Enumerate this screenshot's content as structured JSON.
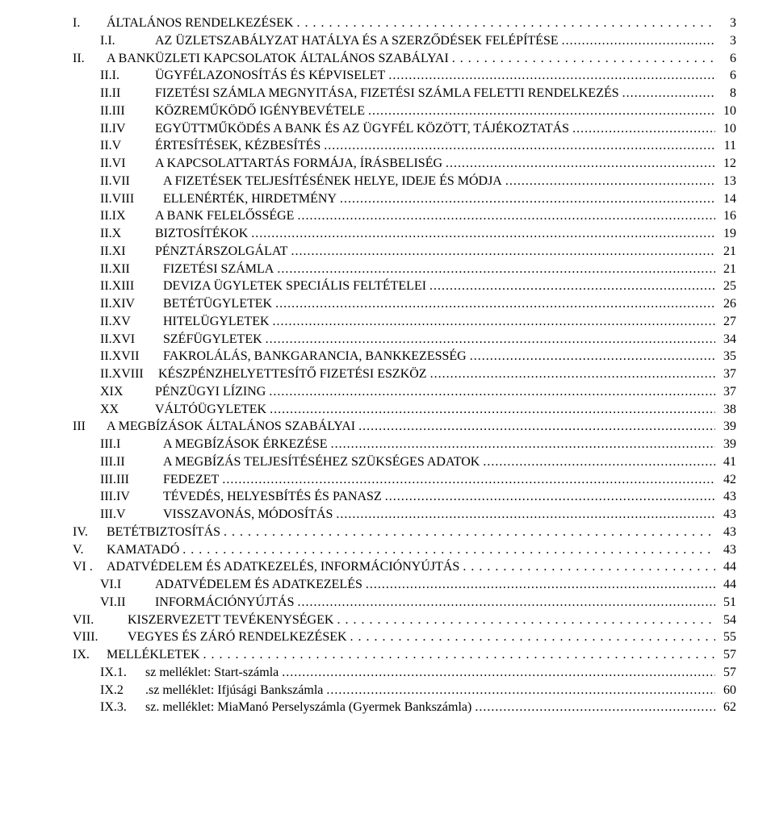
{
  "toc": [
    {
      "indent": 0,
      "numWidth": "w0",
      "num": "I.",
      "label": "ÁLTALÁNOS RENDELKEZÉSEK",
      "page": "3",
      "leader": "wide"
    },
    {
      "indent": 1,
      "numWidth": "w1",
      "num": "I.I.",
      "label": "AZ ÜZLETSZABÁLYZAT HATÁLYA ÉS A SZERZŐDÉSEK FELÉPÍTÉSE",
      "page": "3",
      "leader": "dots"
    },
    {
      "indent": 0,
      "numWidth": "w0",
      "num": "II.",
      "label": "A BANKÜZLETI KAPCSOLATOK ÁLTALÁNOS SZABÁLYAI",
      "page": "6",
      "leader": "wide"
    },
    {
      "indent": 1,
      "numWidth": "w1",
      "num": "II.I.",
      "label": "ÜGYFÉLAZONOSÍTÁS ÉS KÉPVISELET",
      "page": "6",
      "leader": "dots"
    },
    {
      "indent": 1,
      "numWidth": "w1",
      "num": "II.II",
      "label": "FIZETÉSI SZÁMLA MEGNYITÁSA, FIZETÉSI SZÁMLA FELETTI RENDELKEZÉS",
      "page": "8",
      "leader": "dots"
    },
    {
      "indent": 1,
      "numWidth": "w1",
      "num": "II.III",
      "label": "KÖZREMŰKÖDŐ IGÉNYBEVÉTELE",
      "page": "10",
      "leader": "dots"
    },
    {
      "indent": 1,
      "numWidth": "w1",
      "num": "II.IV",
      "label": "EGYÜTTMŰKÖDÉS A BANK ÉS AZ ÜGYFÉL KÖZÖTT, TÁJÉKOZTATÁS",
      "page": "10",
      "leader": "dots"
    },
    {
      "indent": 1,
      "numWidth": "w1",
      "num": "II.V",
      "label": "ÉRTESÍTÉSEK, KÉZBESÍTÉS",
      "page": "11",
      "leader": "dots"
    },
    {
      "indent": 1,
      "numWidth": "w1",
      "num": "II.VI",
      "label": "A KAPCSOLATTARTÁS FORMÁJA, ÍRÁSBELISÉG",
      "page": "12",
      "leader": "dots"
    },
    {
      "indent": 1,
      "numWidth": "w2",
      "num": "II.VII",
      "label": "A FIZETÉSEK TELJESÍTÉSÉNEK HELYE, IDEJE ÉS MÓDJA",
      "page": "13",
      "leader": "dots"
    },
    {
      "indent": 1,
      "numWidth": "w2",
      "num": "II.VIII",
      "label": "ELLENÉRTÉK, HIRDETMÉNY",
      "page": "14",
      "leader": "dots"
    },
    {
      "indent": 1,
      "numWidth": "w1",
      "num": "II.IX",
      "label": "A BANK FELELŐSSÉGE",
      "page": "16",
      "leader": "dots"
    },
    {
      "indent": 1,
      "numWidth": "w1",
      "num": "II.X",
      "label": "BIZTOSÍTÉKOK",
      "page": "19",
      "leader": "dots"
    },
    {
      "indent": 1,
      "numWidth": "w1",
      "num": "II.XI",
      "label": "PÉNZTÁRSZOLGÁLAT",
      "page": "21",
      "leader": "dots"
    },
    {
      "indent": 1,
      "numWidth": "w2",
      "num": "II.XII",
      "label": "FIZETÉSI SZÁMLA",
      "page": "21",
      "leader": "dots"
    },
    {
      "indent": 1,
      "numWidth": "w2",
      "num": "II.XIII",
      "label": "DEVIZA ÜGYLETEK SPECIÁLIS FELTÉTELEI",
      "page": "25",
      "leader": "dots"
    },
    {
      "indent": 1,
      "numWidth": "w2",
      "num": "II.XIV",
      "label": "BETÉTÜGYLETEK",
      "page": "26",
      "leader": "dots"
    },
    {
      "indent": 1,
      "numWidth": "w2",
      "num": "II.XV",
      "label": "HITELÜGYLETEK",
      "page": "27",
      "leader": "dots"
    },
    {
      "indent": 1,
      "numWidth": "w2",
      "num": "II.XVI",
      "label": "SZÉFÜGYLETEK",
      "page": "34",
      "leader": "dots"
    },
    {
      "indent": 1,
      "numWidth": "w2",
      "num": "II.XVII",
      "label": "FAKROLÁLÁS, BANKGARANCIA, BANKKEZESSÉG",
      "page": "35",
      "leader": "dots"
    },
    {
      "indent": 1,
      "numWidth": "w2",
      "num": "II.XVIII",
      "label": "KÉSZPÉNZHELYETTESÍTŐ FIZETÉSI ESZKÖZ",
      "page": "37",
      "leader": "dots",
      "numPadRight": "0"
    },
    {
      "indent": 1,
      "numWidth": "w1",
      "num": "XIX",
      "label": "PÉNZÜGYI LÍZING",
      "page": "37",
      "leader": "dots"
    },
    {
      "indent": 1,
      "numWidth": "w1",
      "num": "XX",
      "label": "VÁLTÓÜGYLETEK",
      "page": "38",
      "leader": "dots"
    },
    {
      "indent": 0,
      "numWidth": "w0",
      "num": "III",
      "label": "A MEGBÍZÁSOK ÁLTALÁNOS SZABÁLYAI",
      "page": "39",
      "leader": "dots"
    },
    {
      "indent": 1,
      "numWidth": "w2",
      "num": "III.I",
      "label": "A MEGBÍZÁSOK ÉRKEZÉSE",
      "page": "39",
      "leader": "dots"
    },
    {
      "indent": 1,
      "numWidth": "w2",
      "num": "III.II",
      "label": "A MEGBÍZÁS TELJESÍTÉSÉHEZ SZÜKSÉGES ADATOK",
      "page": "41",
      "leader": "dots"
    },
    {
      "indent": 1,
      "numWidth": "w2",
      "num": "III.III",
      "label": "FEDEZET",
      "page": "42",
      "leader": "dots"
    },
    {
      "indent": 1,
      "numWidth": "w2",
      "num": "III.IV",
      "label": "TÉVEDÉS, HELYESBÍTÉS ÉS PANASZ",
      "page": "43",
      "leader": "dots"
    },
    {
      "indent": 1,
      "numWidth": "w2",
      "num": "III.V",
      "label": "VISSZAVONÁS, MÓDOSÍTÁS",
      "page": "43",
      "leader": "dots"
    },
    {
      "indent": 0,
      "numWidth": "w0",
      "num": "IV.",
      "label": "BETÉTBIZTOSÍTÁS",
      "page": "43",
      "leader": "wide"
    },
    {
      "indent": 0,
      "numWidth": "w0",
      "num": "V.",
      "label": "KAMATADÓ",
      "page": "43",
      "leader": "wide"
    },
    {
      "indent": 0,
      "numWidth": "w0",
      "num": "VI .",
      "label": "ADATVÉDELEM ÉS ADATKEZELÉS, INFORMÁCIÓNYÚJTÁS",
      "page": "44",
      "leader": "wide"
    },
    {
      "indent": 1,
      "numWidth": "w1",
      "num": "VI.I",
      "label": "ADATVÉDELEM ÉS ADATKEZELÉS",
      "page": "44",
      "leader": "dots"
    },
    {
      "indent": 1,
      "numWidth": "w1",
      "num": "VI.II",
      "label": "INFORMÁCIÓNYÚJTÁS",
      "page": "51",
      "leader": "dots"
    },
    {
      "indent": 0,
      "numWidth": "w1",
      "num": "VII.",
      "label": "KISZERVEZETT TEVÉKENYSÉGEK",
      "page": "54",
      "leader": "wide"
    },
    {
      "indent": 0,
      "numWidth": "w1",
      "num": "VIII.",
      "label": "VEGYES ÉS ZÁRÓ RENDELKEZÉSEK",
      "page": "55",
      "leader": "wide"
    },
    {
      "indent": 0,
      "numWidth": "w0",
      "num": "IX.",
      "label": "MELLÉKLETEK",
      "page": "57",
      "leader": "wide"
    },
    {
      "indent": 1,
      "numWidth": "wix",
      "num": "IX.1.",
      "label": "sz melléklet: Start-számla",
      "page": "57",
      "leader": "dots"
    },
    {
      "indent": 1,
      "numWidth": "wix",
      "num": "IX.2",
      "label": ".sz melléklet: Ifjúsági Bankszámla",
      "page": "60",
      "leader": "dots"
    },
    {
      "indent": 1,
      "numWidth": "wix",
      "num": "IX.3.",
      "label": "sz. melléklet: MiaManó Perselyszámla (Gyermek Bankszámla)",
      "page": "62",
      "leader": "dots"
    }
  ]
}
